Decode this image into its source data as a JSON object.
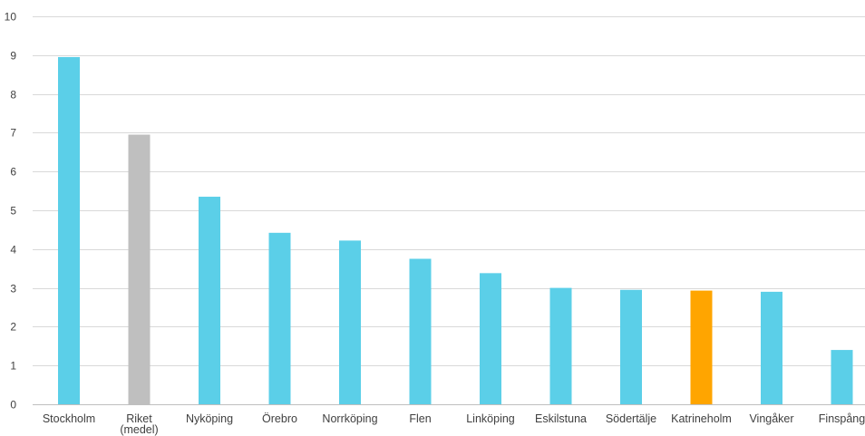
{
  "chart_data": {
    "type": "bar",
    "title": "",
    "xlabel": "",
    "ylabel": "",
    "ylim": [
      0,
      10
    ],
    "yticks": [
      0,
      1,
      2,
      3,
      4,
      5,
      6,
      7,
      8,
      9,
      10
    ],
    "grid": true,
    "legend": "none",
    "categories": [
      [
        "Stockholm"
      ],
      [
        "Riket",
        "(medel)"
      ],
      [
        "Nyköping"
      ],
      [
        "Örebro"
      ],
      [
        "Norrköping"
      ],
      [
        "Flen"
      ],
      [
        "Linköping"
      ],
      [
        "Eskilstuna"
      ],
      [
        "Södertälje"
      ],
      [
        "Katrineholm"
      ],
      [
        "Vingåker"
      ],
      [
        "Finspång"
      ]
    ],
    "values": [
      8.95,
      6.95,
      5.35,
      4.42,
      4.22,
      3.75,
      3.38,
      3.0,
      2.95,
      2.93,
      2.9,
      1.4
    ],
    "colors": [
      "#5bcfe8",
      "#bfbfbf",
      "#5bcfe8",
      "#5bcfe8",
      "#5bcfe8",
      "#5bcfe8",
      "#5bcfe8",
      "#5bcfe8",
      "#5bcfe8",
      "#ffa500",
      "#5bcfe8",
      "#5bcfe8"
    ]
  }
}
